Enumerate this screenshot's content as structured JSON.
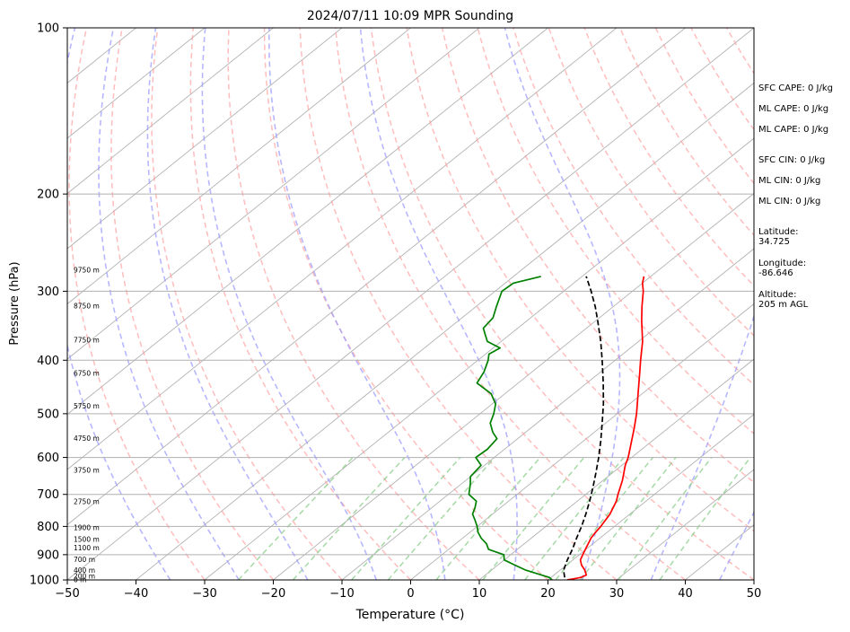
{
  "chart_data": {
    "type": "line",
    "title": "2024/07/11 10:09 MPR Sounding",
    "xlabel": "Temperature (°C)",
    "ylabel": "Pressure (hPa)",
    "xlim": [
      -50,
      50
    ],
    "ylim": [
      1000,
      100
    ],
    "y_scale": "log",
    "skew": "Skew-T log-P",
    "grid": true,
    "x_ticks": [
      "−50",
      "−40",
      "−30",
      "−20",
      "−10",
      "0",
      "10",
      "20",
      "30",
      "40",
      "50"
    ],
    "x_tick_values": [
      -50,
      -40,
      -30,
      -20,
      -10,
      0,
      10,
      20,
      30,
      40,
      50
    ],
    "y_ticks": [
      "1000",
      "900",
      "800",
      "700",
      "600",
      "500",
      "400",
      "300",
      "200",
      "100"
    ],
    "y_tick_values": [
      1000,
      900,
      800,
      700,
      600,
      500,
      400,
      300,
      200,
      100
    ],
    "height_labels": [
      {
        "p": 1000,
        "text": "0 m"
      },
      {
        "p": 985,
        "text": "200 m"
      },
      {
        "p": 962,
        "text": "400 m"
      },
      {
        "p": 920,
        "text": "700 m"
      },
      {
        "p": 875,
        "text": "1100 m"
      },
      {
        "p": 845,
        "text": "1500 m"
      },
      {
        "p": 805,
        "text": "1900 m"
      },
      {
        "p": 722,
        "text": "2750 m"
      },
      {
        "p": 633,
        "text": "3750 m"
      },
      {
        "p": 555,
        "text": "4750 m"
      },
      {
        "p": 485,
        "text": "5750 m"
      },
      {
        "p": 423,
        "text": "6750 m"
      },
      {
        "p": 368,
        "text": "7750 m"
      },
      {
        "p": 319,
        "text": "8750 m"
      },
      {
        "p": 275,
        "text": "9750 m"
      }
    ],
    "series": [
      {
        "color": "#ff0000",
        "points": [
          [
            1000,
            22.8
          ],
          [
            990,
            24.3
          ],
          [
            980,
            24.7
          ],
          [
            960,
            23.6
          ],
          [
            940,
            22.2
          ],
          [
            920,
            21.1
          ],
          [
            900,
            20.5
          ],
          [
            880,
            19.9
          ],
          [
            860,
            19.3
          ],
          [
            840,
            18.7
          ],
          [
            820,
            18.3
          ],
          [
            800,
            18.0
          ],
          [
            760,
            17.1
          ],
          [
            720,
            15.7
          ],
          [
            700,
            14.7
          ],
          [
            660,
            12.8
          ],
          [
            620,
            10.5
          ],
          [
            600,
            9.5
          ],
          [
            560,
            7.0
          ],
          [
            530,
            5.0
          ],
          [
            500,
            2.8
          ],
          [
            460,
            -0.6
          ],
          [
            420,
            -4.3
          ],
          [
            400,
            -6.3
          ],
          [
            370,
            -9.4
          ],
          [
            340,
            -13.2
          ],
          [
            320,
            -15.8
          ],
          [
            300,
            -18.4
          ],
          [
            290,
            -20.0
          ],
          [
            282,
            -21.0
          ]
        ]
      },
      {
        "color": "#008000",
        "points": [
          [
            1000,
            20.6
          ],
          [
            990,
            19.8
          ],
          [
            980,
            18.2
          ],
          [
            960,
            15.0
          ],
          [
            940,
            12.5
          ],
          [
            920,
            10.0
          ],
          [
            900,
            9.0
          ],
          [
            880,
            5.8
          ],
          [
            860,
            4.5
          ],
          [
            840,
            2.7
          ],
          [
            820,
            1.2
          ],
          [
            800,
            0.0
          ],
          [
            780,
            -1.4
          ],
          [
            760,
            -2.9
          ],
          [
            740,
            -3.7
          ],
          [
            720,
            -4.7
          ],
          [
            700,
            -7.0
          ],
          [
            670,
            -8.7
          ],
          [
            650,
            -10.0
          ],
          [
            620,
            -10.5
          ],
          [
            600,
            -12.7
          ],
          [
            580,
            -12.5
          ],
          [
            555,
            -13.0
          ],
          [
            540,
            -14.8
          ],
          [
            520,
            -16.8
          ],
          [
            500,
            -18.0
          ],
          [
            480,
            -19.5
          ],
          [
            460,
            -22.0
          ],
          [
            440,
            -26.0
          ],
          [
            420,
            -27.0
          ],
          [
            400,
            -28.5
          ],
          [
            390,
            -29.5
          ],
          [
            380,
            -29.0
          ],
          [
            370,
            -32.0
          ],
          [
            360,
            -33.5
          ],
          [
            350,
            -35.0
          ],
          [
            335,
            -35.5
          ],
          [
            320,
            -37.0
          ],
          [
            300,
            -39.0
          ],
          [
            290,
            -38.8
          ],
          [
            282,
            -36.0
          ]
        ]
      },
      {
        "color": "#000000",
        "style": "dashed",
        "points": [
          [
            990,
            22.0
          ],
          [
            960,
            20.5
          ],
          [
            920,
            19.2
          ],
          [
            880,
            18.0
          ],
          [
            840,
            16.6
          ],
          [
            800,
            15.2
          ],
          [
            760,
            13.6
          ],
          [
            720,
            11.8
          ],
          [
            680,
            9.8
          ],
          [
            640,
            7.6
          ],
          [
            600,
            5.2
          ],
          [
            560,
            2.5
          ],
          [
            520,
            -0.5
          ],
          [
            480,
            -3.8
          ],
          [
            440,
            -7.6
          ],
          [
            400,
            -11.9
          ],
          [
            370,
            -15.5
          ],
          [
            340,
            -19.6
          ],
          [
            320,
            -22.6
          ],
          [
            300,
            -26.0
          ],
          [
            282,
            -29.4
          ]
        ]
      }
    ],
    "background_lines": {
      "isotherms_c": [
        -150,
        -140,
        -130,
        -120,
        -110,
        -100,
        -90,
        -80,
        -70,
        -60,
        -50,
        -40,
        -30,
        -20,
        -10,
        0,
        10,
        20,
        30,
        40,
        50
      ],
      "dry_adiabats_c": [
        -30,
        -20,
        -10,
        0,
        10,
        20,
        30,
        40,
        50,
        60,
        70,
        80,
        90,
        100,
        110,
        120,
        130,
        140,
        150,
        160,
        170,
        180,
        190,
        200
      ],
      "moist_adiabats_c": [
        -35,
        -25,
        -15,
        -5,
        5,
        15,
        25,
        35,
        45
      ],
      "mixing_ratios_gkg": [
        0.5,
        1,
        2,
        3,
        5,
        8,
        12,
        16,
        20,
        28,
        40
      ]
    }
  },
  "side_panel": {
    "sfc_cape": "SFC CAPE: 0 J/kg",
    "ml_cape_1": "ML CAPE: 0 J/kg",
    "ml_cape_2": "ML CAPE: 0 J/kg",
    "sfc_cin": "SFC CIN: 0 J/kg",
    "ml_cin_1": "ML CIN: 0 J/kg",
    "ml_cin_2": "ML CIN: 0 J/kg",
    "latitude": "Latitude:\n34.725",
    "longitude": "Longitude:\n-86.646",
    "altitude": "Altitude:\n205 m AGL"
  },
  "colors": {
    "temperature": "#ff0000",
    "dewpoint": "#008000",
    "parcel": "#000000",
    "dry_adiabat": "#ff9999",
    "moist_adiabat": "#9999ff",
    "mixing_ratio": "#8fcf8f",
    "isotherm": "#b3b3b3"
  }
}
